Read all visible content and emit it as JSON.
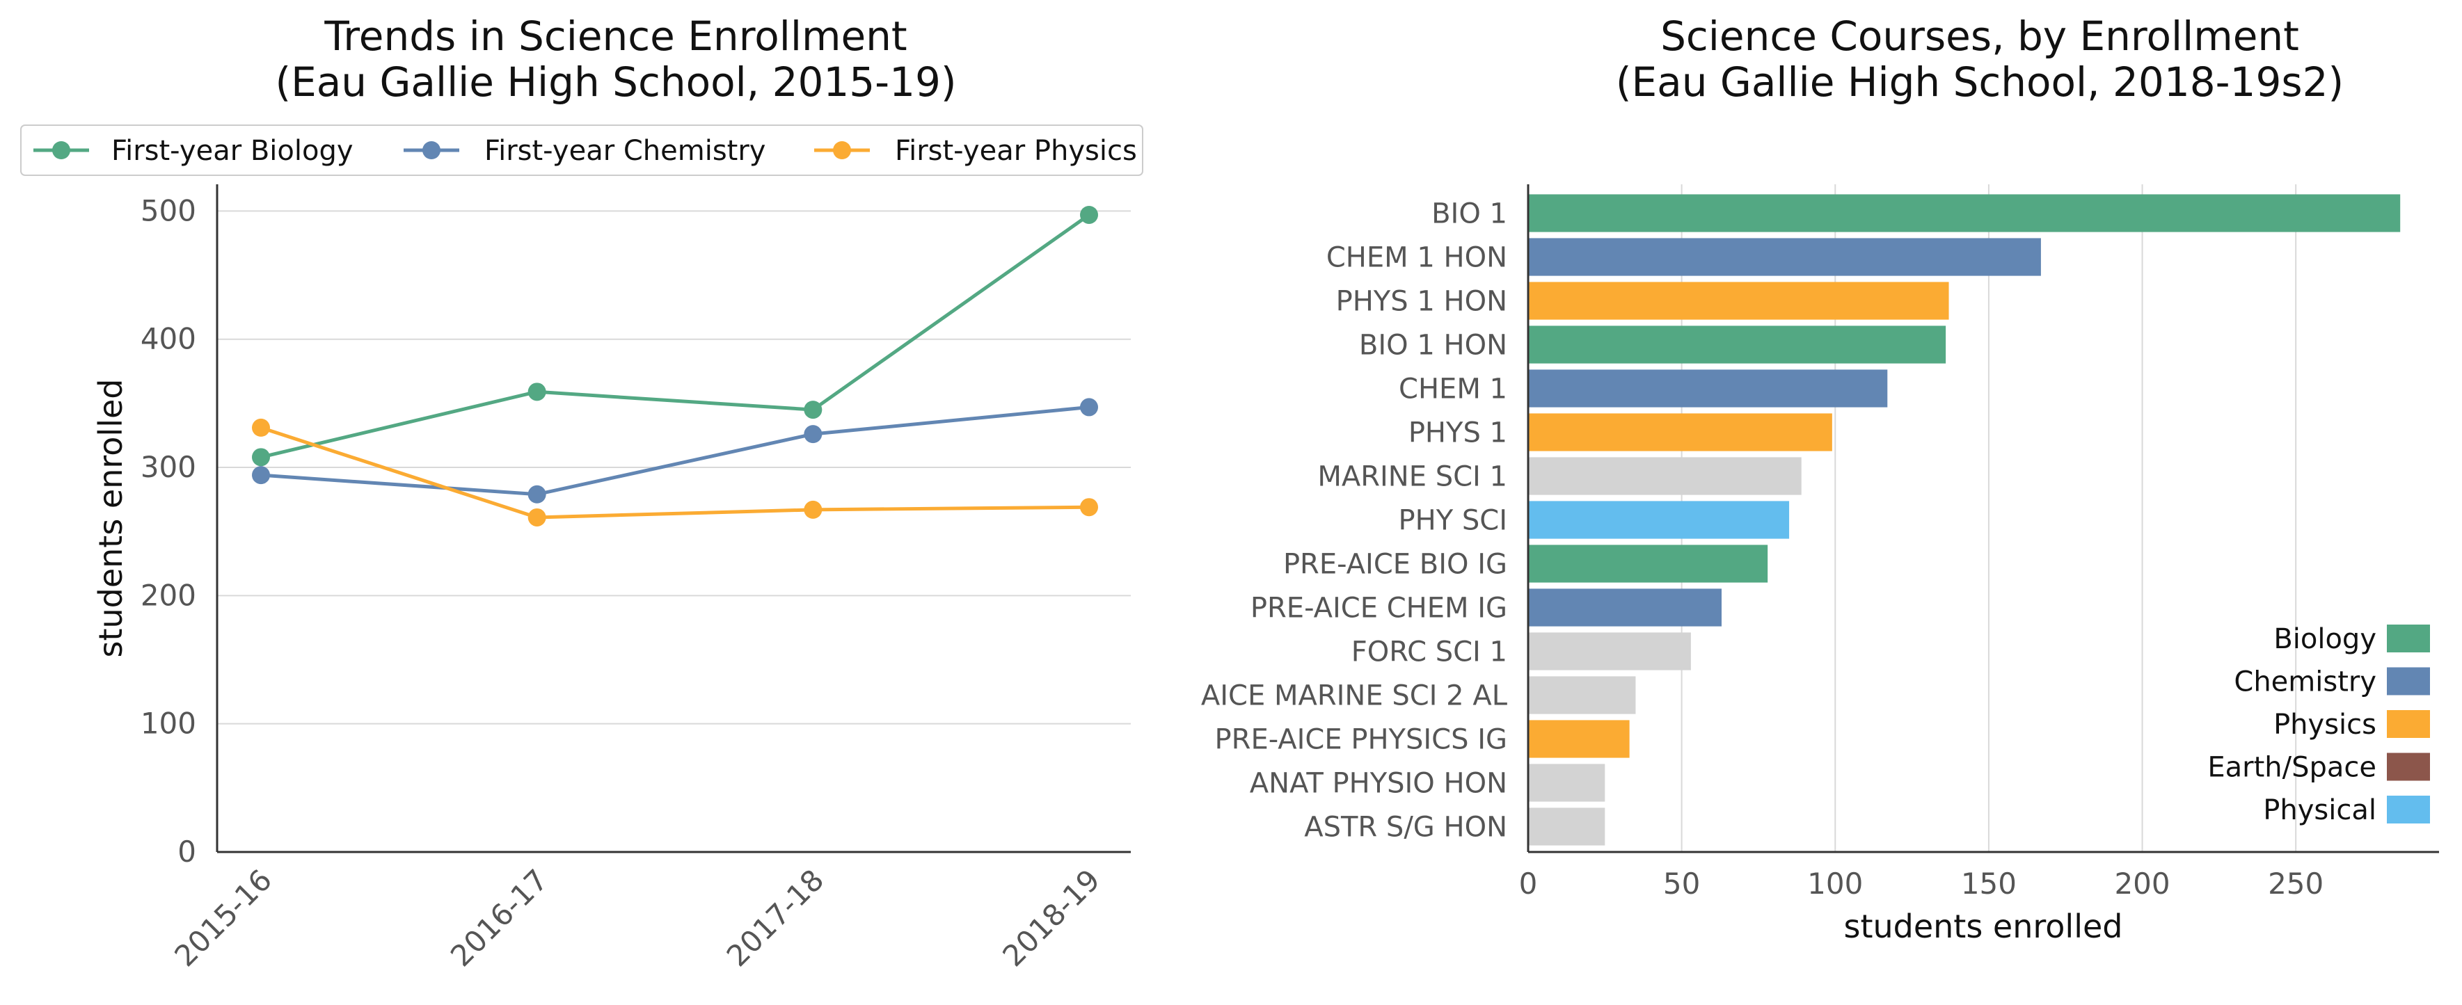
{
  "chart_data": [
    {
      "type": "line",
      "title": "Trends in Science Enrollment",
      "subtitle": "(Eau Gallie High School, 2015-19)",
      "xlabel": "",
      "ylabel": "students enrolled",
      "categories": [
        "2015-16",
        "2016-17",
        "2017-18",
        "2018-19"
      ],
      "ylim": [
        0,
        510
      ],
      "yticks": [
        0,
        100,
        200,
        300,
        400,
        500
      ],
      "grid": "horizontal",
      "legend": "top",
      "series": [
        {
          "name": "First-year Biology",
          "color": "#53a883",
          "values": [
            308,
            359,
            345,
            497
          ]
        },
        {
          "name": "First-year Chemistry",
          "color": "#6286b3",
          "values": [
            294,
            279,
            326,
            347
          ]
        },
        {
          "name": "First-year Physics",
          "color": "#fbab33",
          "values": [
            331,
            261,
            267,
            269
          ]
        }
      ]
    },
    {
      "type": "bar",
      "orientation": "horizontal",
      "title": "Science Courses, by Enrollment",
      "subtitle": "(Eau Gallie High School, 2018-19s2)",
      "xlabel": "students enrolled",
      "ylabel": "",
      "xlim": [
        0,
        290
      ],
      "xticks": [
        0,
        50,
        100,
        150,
        200,
        250
      ],
      "grid": "vertical",
      "legend": "bottom-right",
      "legend_entries": [
        {
          "name": "Biology",
          "color": "#53a883"
        },
        {
          "name": "Chemistry",
          "color": "#6286b3"
        },
        {
          "name": "Physics",
          "color": "#fbab33"
        },
        {
          "name": "Earth/Space",
          "color": "#8c564b"
        },
        {
          "name": "Physical",
          "color": "#63bdee"
        }
      ],
      "bars": [
        {
          "label": "BIO 1",
          "value": 284,
          "color": "#53a883"
        },
        {
          "label": "CHEM 1 HON",
          "value": 167,
          "color": "#6286b3"
        },
        {
          "label": "PHYS 1 HON",
          "value": 137,
          "color": "#fbab33"
        },
        {
          "label": "BIO 1 HON",
          "value": 136,
          "color": "#53a883"
        },
        {
          "label": "CHEM 1",
          "value": 117,
          "color": "#6286b3"
        },
        {
          "label": "PHYS 1",
          "value": 99,
          "color": "#fbab33"
        },
        {
          "label": "MARINE SCI 1",
          "value": 89,
          "color": "#d3d3d3"
        },
        {
          "label": "PHY SCI",
          "value": 85,
          "color": "#63bdee"
        },
        {
          "label": "PRE-AICE BIO IG",
          "value": 78,
          "color": "#53a883"
        },
        {
          "label": "PRE-AICE CHEM IG",
          "value": 63,
          "color": "#6286b3"
        },
        {
          "label": "FORC SCI 1",
          "value": 53,
          "color": "#d3d3d3"
        },
        {
          "label": "AICE MARINE SCI 2 AL",
          "value": 35,
          "color": "#d3d3d3"
        },
        {
          "label": "PRE-AICE PHYSICS IG",
          "value": 33,
          "color": "#fbab33"
        },
        {
          "label": "ANAT PHYSIO HON",
          "value": 25,
          "color": "#d3d3d3"
        },
        {
          "label": "ASTR S/G HON",
          "value": 25,
          "color": "#d3d3d3"
        }
      ]
    }
  ]
}
